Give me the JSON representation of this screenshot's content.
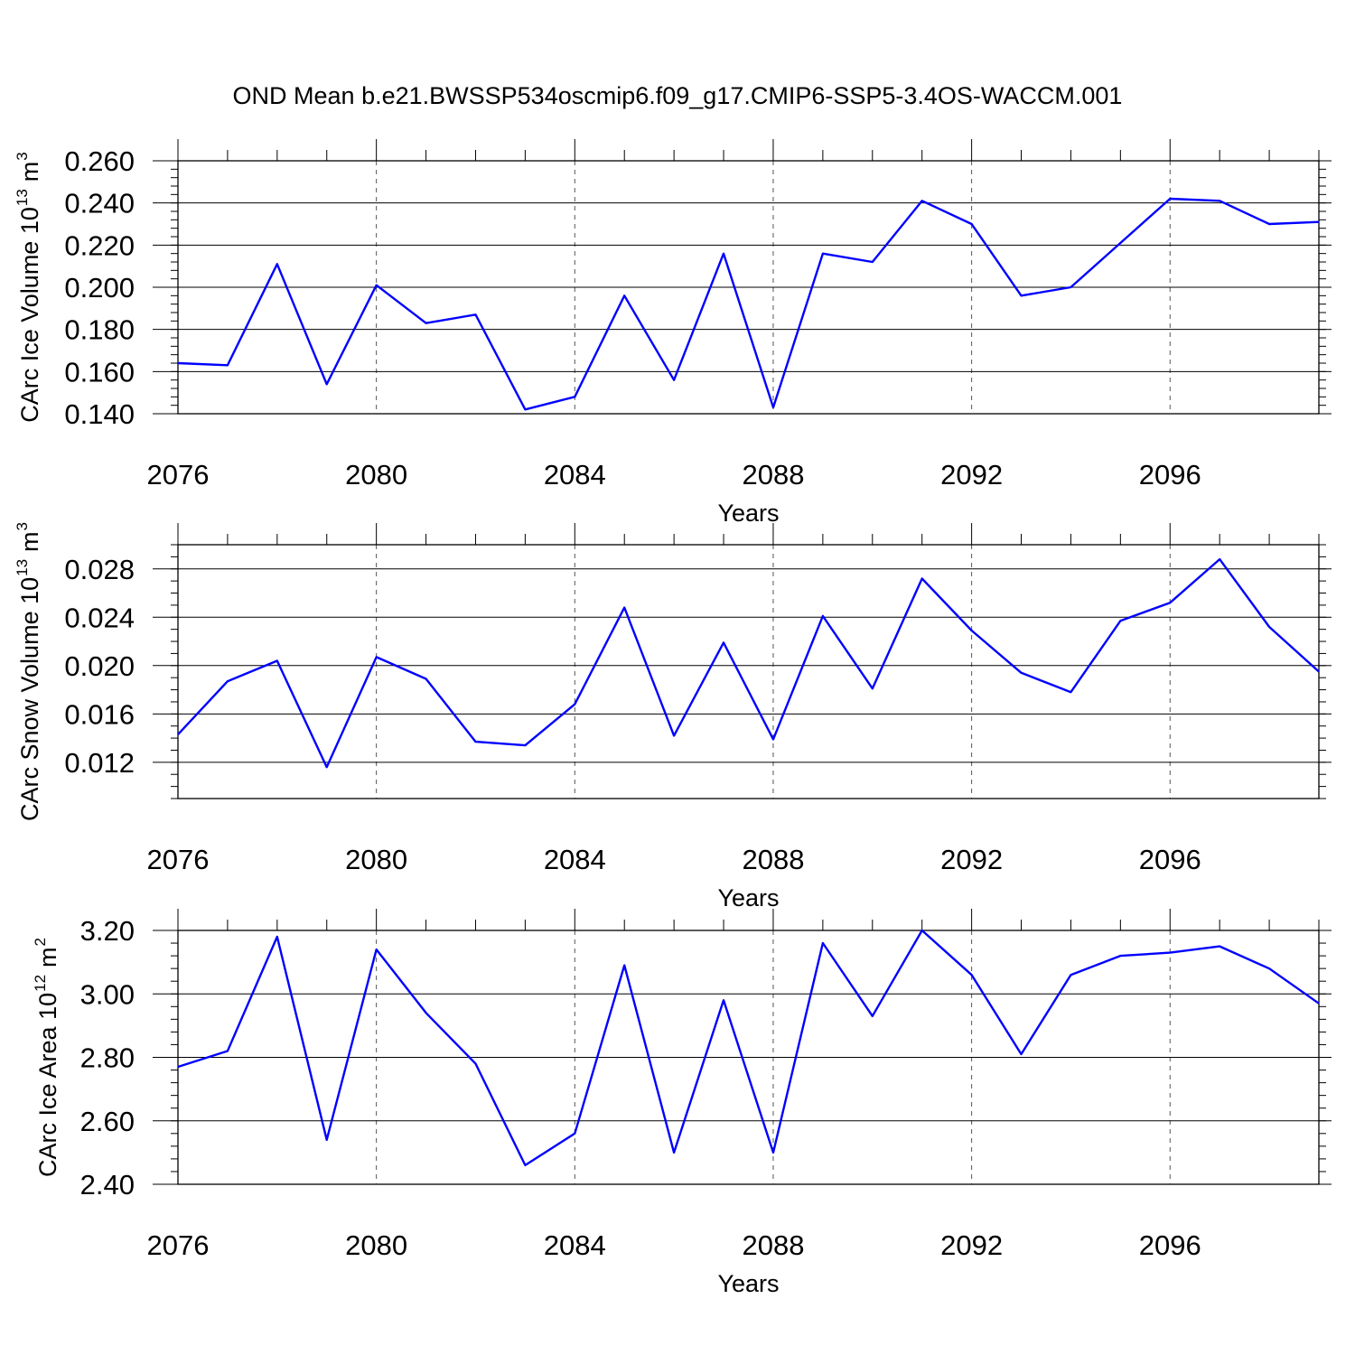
{
  "title": "OND Mean b.e21.BWSSP534oscmip6.f09_g17.CMIP6-SSP5-3.4OS-WACCM.001",
  "line_color": "#0000ff",
  "chart_data": [
    {
      "type": "line",
      "ylabel": {
        "base": "CArc Ice Volume 10",
        "exp": "13",
        "unit": "m",
        "unit_exp": "3"
      },
      "xlabel": "Years",
      "xlim": [
        2076,
        2099
      ],
      "ylim": [
        0.14,
        0.26
      ],
      "x_major_ticks": [
        2076,
        2080,
        2084,
        2088,
        2092,
        2096
      ],
      "x_tick_labels": [
        "2076",
        "2080",
        "2084",
        "2088",
        "2092",
        "2096"
      ],
      "y_major_ticks": [
        0.14,
        0.16,
        0.18,
        0.2,
        0.22,
        0.24,
        0.26
      ],
      "y_tick_labels": [
        "0.140",
        "0.160",
        "0.180",
        "0.200",
        "0.220",
        "0.240",
        "0.260"
      ],
      "y_minor_step": 0.004,
      "grid": "dashed vertical at major x ticks",
      "x": [
        2076,
        2077,
        2078,
        2079,
        2080,
        2081,
        2082,
        2083,
        2084,
        2085,
        2086,
        2087,
        2088,
        2089,
        2090,
        2091,
        2092,
        2093,
        2094,
        2095,
        2096,
        2097,
        2098,
        2099
      ],
      "values": [
        0.164,
        0.163,
        0.211,
        0.154,
        0.201,
        0.183,
        0.187,
        0.142,
        0.148,
        0.196,
        0.156,
        0.216,
        0.143,
        0.216,
        0.212,
        0.241,
        0.23,
        0.196,
        0.2,
        0.221,
        0.242,
        0.241,
        0.23,
        0.231
      ]
    },
    {
      "type": "line",
      "ylabel": {
        "base": "CArc Snow Volume 10",
        "exp": "13",
        "unit": "m",
        "unit_exp": "3"
      },
      "xlabel": "Years",
      "xlim": [
        2076,
        2099
      ],
      "ylim": [
        0.009,
        0.03
      ],
      "x_major_ticks": [
        2076,
        2080,
        2084,
        2088,
        2092,
        2096
      ],
      "x_tick_labels": [
        "2076",
        "2080",
        "2084",
        "2088",
        "2092",
        "2096"
      ],
      "y_major_ticks": [
        0.012,
        0.016,
        0.02,
        0.024,
        0.028
      ],
      "y_tick_labels": [
        "0.012",
        "0.016",
        "0.020",
        "0.024",
        "0.028"
      ],
      "y_minor_step": 0.001,
      "grid": "dashed vertical at major x ticks",
      "x": [
        2076,
        2077,
        2078,
        2079,
        2080,
        2081,
        2082,
        2083,
        2084,
        2085,
        2086,
        2087,
        2088,
        2089,
        2090,
        2091,
        2092,
        2093,
        2094,
        2095,
        2096,
        2097,
        2098,
        2099
      ],
      "values": [
        0.0143,
        0.0187,
        0.0204,
        0.0116,
        0.0207,
        0.0189,
        0.0137,
        0.0134,
        0.0168,
        0.0248,
        0.0142,
        0.0219,
        0.0139,
        0.0241,
        0.0181,
        0.0272,
        0.0229,
        0.0194,
        0.0178,
        0.0237,
        0.0252,
        0.0288,
        0.0232,
        0.0195
      ]
    },
    {
      "type": "line",
      "ylabel": {
        "base": "CArc Ice Area 10",
        "exp": "12",
        "unit": "m",
        "unit_exp": "2"
      },
      "xlabel": "Years",
      "xlim": [
        2076,
        2099
      ],
      "ylim": [
        2.4,
        3.2
      ],
      "x_major_ticks": [
        2076,
        2080,
        2084,
        2088,
        2092,
        2096
      ],
      "x_tick_labels": [
        "2076",
        "2080",
        "2084",
        "2088",
        "2092",
        "2096"
      ],
      "y_major_ticks": [
        2.4,
        2.6,
        2.8,
        3.0,
        3.2
      ],
      "y_tick_labels": [
        "2.40",
        "2.60",
        "2.80",
        "3.00",
        "3.20"
      ],
      "y_minor_step": 0.04,
      "grid": "dashed vertical at major x ticks",
      "x": [
        2076,
        2077,
        2078,
        2079,
        2080,
        2081,
        2082,
        2083,
        2084,
        2085,
        2086,
        2087,
        2088,
        2089,
        2090,
        2091,
        2092,
        2093,
        2094,
        2095,
        2096,
        2097,
        2098,
        2099
      ],
      "values": [
        2.77,
        2.82,
        3.18,
        2.54,
        3.14,
        2.94,
        2.78,
        2.46,
        2.56,
        3.09,
        2.5,
        2.98,
        2.5,
        3.16,
        2.93,
        3.2,
        3.06,
        2.81,
        3.06,
        3.12,
        3.13,
        3.15,
        3.08,
        2.97
      ]
    }
  ]
}
